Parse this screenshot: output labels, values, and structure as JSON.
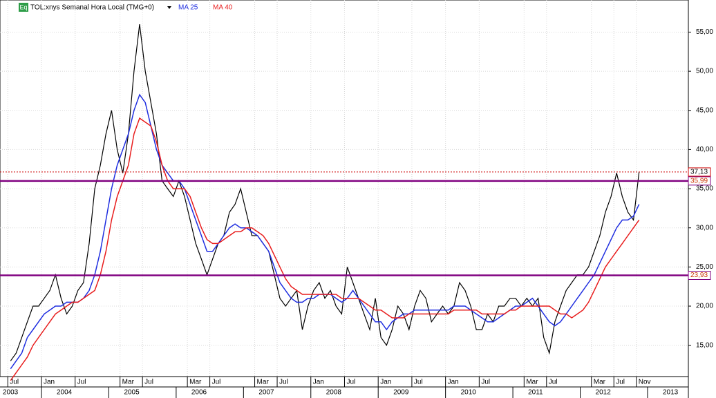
{
  "chart_data": {
    "type": "line",
    "title": "TOL:xnys Semanal Hora Local (TMG+0)",
    "badge": "Eq",
    "x": [
      "2003-07",
      "2003-08",
      "2003-09",
      "2003-10",
      "2003-11",
      "2003-12",
      "2004-01",
      "2004-02",
      "2004-03",
      "2004-04",
      "2004-05",
      "2004-06",
      "2004-07",
      "2004-08",
      "2004-09",
      "2004-10",
      "2004-11",
      "2004-12",
      "2005-01",
      "2005-02",
      "2005-03",
      "2005-04",
      "2005-05",
      "2005-06",
      "2005-07",
      "2005-08",
      "2005-09",
      "2005-10",
      "2005-11",
      "2005-12",
      "2006-01",
      "2006-02",
      "2006-03",
      "2006-04",
      "2006-05",
      "2006-06",
      "2006-07",
      "2006-08",
      "2006-09",
      "2006-10",
      "2006-11",
      "2006-12",
      "2007-01",
      "2007-02",
      "2007-03",
      "2007-04",
      "2007-05",
      "2007-06",
      "2007-07",
      "2007-08",
      "2007-09",
      "2007-10",
      "2007-11",
      "2007-12",
      "2008-01",
      "2008-02",
      "2008-03",
      "2008-04",
      "2008-05",
      "2008-06",
      "2008-07",
      "2008-08",
      "2008-09",
      "2008-10",
      "2008-11",
      "2008-12",
      "2009-01",
      "2009-02",
      "2009-03",
      "2009-04",
      "2009-05",
      "2009-06",
      "2009-07",
      "2009-08",
      "2009-09",
      "2009-10",
      "2009-11",
      "2009-12",
      "2010-01",
      "2010-02",
      "2010-03",
      "2010-04",
      "2010-05",
      "2010-06",
      "2010-07",
      "2010-08",
      "2010-09",
      "2010-10",
      "2010-11",
      "2010-12",
      "2011-01",
      "2011-02",
      "2011-03",
      "2011-04",
      "2011-05",
      "2011-06",
      "2011-07",
      "2011-08",
      "2011-09",
      "2011-10",
      "2011-11",
      "2011-12",
      "2012-01",
      "2012-02",
      "2012-03",
      "2012-04",
      "2012-05",
      "2012-06",
      "2012-07",
      "2012-08",
      "2012-09",
      "2012-10",
      "2012-11"
    ],
    "series": [
      {
        "name": "TOL",
        "color": "#000000",
        "values": [
          13,
          14,
          16,
          18,
          20,
          20,
          21,
          22,
          24,
          21,
          19,
          20,
          22,
          23,
          28,
          35,
          38,
          42,
          45,
          40,
          37,
          42,
          50,
          56,
          50,
          46,
          42,
          36,
          35,
          34,
          36,
          34,
          31,
          28,
          26,
          24,
          26,
          28,
          29,
          32,
          33,
          35,
          32,
          29,
          29,
          28,
          27,
          24,
          21,
          20,
          21,
          22,
          17,
          20,
          22,
          23,
          21,
          22,
          20,
          19,
          25,
          23,
          21,
          19,
          17,
          21,
          16,
          15,
          17,
          20,
          19,
          17,
          20,
          22,
          21,
          18,
          19,
          20,
          19,
          20,
          23,
          22,
          20,
          17,
          17,
          19,
          18,
          20,
          20,
          21,
          21,
          20,
          21,
          20,
          21,
          16,
          14,
          18,
          20,
          22,
          23,
          24,
          24,
          25,
          27,
          29,
          32,
          34,
          37,
          34,
          32,
          31,
          37.13
        ]
      },
      {
        "name": "MA 25",
        "color": "#1f2ee0",
        "values": [
          12,
          13,
          14,
          16,
          17,
          18,
          19,
          19.5,
          20,
          20,
          20.5,
          20.5,
          20.5,
          21,
          22,
          24,
          27,
          31,
          35,
          38,
          40,
          42,
          45,
          47,
          46,
          43,
          40,
          38,
          37,
          36,
          36,
          35,
          33,
          31,
          29,
          27,
          27,
          28,
          29,
          30,
          30.5,
          30,
          30,
          29.5,
          29,
          28,
          27,
          25,
          23,
          22,
          21,
          20.5,
          20.5,
          21,
          21,
          21.5,
          21.5,
          21.5,
          21,
          20.5,
          21,
          22,
          21,
          20,
          19,
          18,
          18,
          17,
          18,
          18.5,
          19,
          19,
          19.5,
          19.5,
          19.5,
          19.5,
          19.5,
          19.5,
          19.5,
          20,
          20,
          20,
          19.5,
          19,
          18.5,
          18,
          18,
          18.5,
          19,
          19.5,
          20,
          20,
          20.5,
          21,
          20,
          19,
          18,
          17.5,
          18,
          19,
          20,
          21,
          22,
          23,
          24,
          25.5,
          27,
          28.5,
          30,
          31,
          31,
          31.5,
          33
        ]
      },
      {
        "name": "MA 40",
        "color": "#e81c1c",
        "values": [
          10.5,
          11.5,
          12.5,
          13.5,
          15,
          16,
          17,
          18,
          19,
          19.5,
          20,
          20.5,
          20.5,
          21,
          21.5,
          22,
          24,
          27,
          31,
          34,
          36,
          38,
          42,
          44,
          43.5,
          43,
          41,
          38,
          36,
          35,
          35,
          35,
          34,
          32,
          30,
          28.5,
          28,
          28,
          28.5,
          29,
          29.5,
          29.5,
          30,
          30,
          29.5,
          29,
          28,
          26.5,
          25,
          23.5,
          22.5,
          22,
          21.5,
          21.5,
          21.5,
          21.5,
          21.5,
          21.5,
          21.5,
          21,
          21,
          21,
          21,
          20.5,
          20,
          19.5,
          19.5,
          19,
          18.5,
          18.5,
          18.5,
          19,
          19,
          19,
          19,
          19,
          19,
          19,
          19,
          19.5,
          19.5,
          19.5,
          19.5,
          19.5,
          19,
          19,
          19,
          19,
          19,
          19.5,
          19.5,
          20,
          20,
          20,
          20,
          20,
          20,
          19.5,
          19,
          19,
          18.5,
          19,
          19.5,
          20.5,
          22,
          23.5,
          25,
          26,
          27,
          28,
          29,
          30,
          31
        ]
      }
    ],
    "levels": [
      {
        "value": 35.99,
        "label": "35,99",
        "color": "#800080"
      },
      {
        "value": 23.93,
        "label": "23,93",
        "color": "#800080"
      },
      {
        "value": 37.13,
        "label": "37,13",
        "color": "#cc0000"
      }
    ],
    "ylim": [
      11,
      59.1
    ],
    "yticks": [
      {
        "value": 15,
        "label": "15,00"
      },
      {
        "value": 20,
        "label": "20,00"
      },
      {
        "value": 25,
        "label": "25,00"
      },
      {
        "value": 30,
        "label": "30,00"
      },
      {
        "value": 35,
        "label": "35,00"
      },
      {
        "value": 40,
        "label": "40,00"
      },
      {
        "value": 45,
        "label": "45,00"
      },
      {
        "value": 50,
        "label": "50,00"
      },
      {
        "value": 55,
        "label": "55,00"
      }
    ],
    "xticks": [
      {
        "value": "2003-07",
        "label": "Jul"
      },
      {
        "value": "2004-01",
        "label": "Jan"
      },
      {
        "value": "2004-07",
        "label": "Jul"
      },
      {
        "value": "2005-03",
        "label": "Mar"
      },
      {
        "value": "2005-07",
        "label": "Jul"
      },
      {
        "value": "2006-03",
        "label": "Mar"
      },
      {
        "value": "2006-07",
        "label": "Jul"
      },
      {
        "value": "2007-03",
        "label": "Mar"
      },
      {
        "value": "2007-07",
        "label": "Jul"
      },
      {
        "value": "2008-01",
        "label": "Jan"
      },
      {
        "value": "2008-07",
        "label": "Jul"
      },
      {
        "value": "2009-01",
        "label": "Jan"
      },
      {
        "value": "2009-07",
        "label": "Jul"
      },
      {
        "value": "2010-01",
        "label": "Jan"
      },
      {
        "value": "2010-07",
        "label": "Jul"
      },
      {
        "value": "2011-03",
        "label": "Mar"
      },
      {
        "value": "2011-07",
        "label": "Jul"
      },
      {
        "value": "2012-03",
        "label": "Mar"
      },
      {
        "value": "2012-07",
        "label": "Jul"
      },
      {
        "value": "2012-11",
        "label": "Nov"
      }
    ],
    "years": [
      "2003",
      "2004",
      "2005",
      "2006",
      "2007",
      "2008",
      "2009",
      "2010",
      "2011",
      "2012",
      "2013"
    ],
    "grid": true
  }
}
